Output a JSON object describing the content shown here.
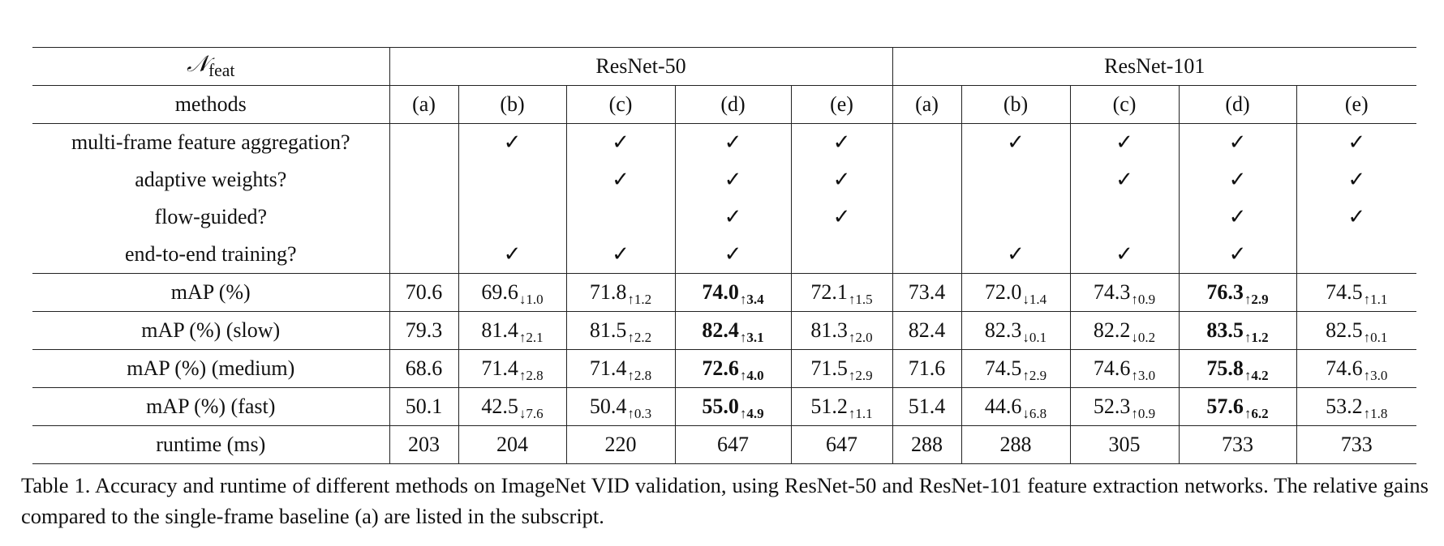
{
  "table": {
    "corner_label": {
      "symbol": "𝒩",
      "subscript": "feat"
    },
    "groups": [
      "ResNet-50",
      "ResNet-101"
    ],
    "methods_label": "methods",
    "method_ids": [
      "(a)",
      "(b)",
      "(c)",
      "(d)",
      "(e)",
      "(a)",
      "(b)",
      "(c)",
      "(d)",
      "(e)"
    ],
    "check_glyph": "✓",
    "check_rows": [
      {
        "label": "multi-frame feature aggregation?",
        "checks": [
          false,
          true,
          true,
          true,
          true,
          false,
          true,
          true,
          true,
          true
        ]
      },
      {
        "label": "adaptive weights?",
        "checks": [
          false,
          false,
          true,
          true,
          true,
          false,
          false,
          true,
          true,
          true
        ]
      },
      {
        "label": "flow-guided?",
        "checks": [
          false,
          false,
          false,
          true,
          true,
          false,
          false,
          false,
          true,
          true
        ]
      },
      {
        "label": "end-to-end training?",
        "checks": [
          false,
          true,
          true,
          true,
          false,
          false,
          true,
          true,
          true,
          false
        ]
      }
    ],
    "metric_rows": [
      {
        "label": "mAP (%)",
        "cells": [
          {
            "v": "70.6",
            "g": ""
          },
          {
            "v": "69.6",
            "g": "↓1.0"
          },
          {
            "v": "71.8",
            "g": "↑1.2"
          },
          {
            "v": "74.0",
            "g": "↑3.4",
            "bold": true
          },
          {
            "v": "72.1",
            "g": "↑1.5"
          },
          {
            "v": "73.4",
            "g": ""
          },
          {
            "v": "72.0",
            "g": "↓1.4"
          },
          {
            "v": "74.3",
            "g": "↑0.9"
          },
          {
            "v": "76.3",
            "g": "↑2.9",
            "bold": true
          },
          {
            "v": "74.5",
            "g": "↑1.1"
          }
        ]
      },
      {
        "label": "mAP (%) (slow)",
        "cells": [
          {
            "v": "79.3",
            "g": ""
          },
          {
            "v": "81.4",
            "g": "↑2.1"
          },
          {
            "v": "81.5",
            "g": "↑2.2"
          },
          {
            "v": "82.4",
            "g": "↑3.1",
            "bold": true
          },
          {
            "v": "81.3",
            "g": "↑2.0"
          },
          {
            "v": "82.4",
            "g": ""
          },
          {
            "v": "82.3",
            "g": "↓0.1"
          },
          {
            "v": "82.2",
            "g": "↓0.2"
          },
          {
            "v": "83.5",
            "g": "↑1.2",
            "bold": true
          },
          {
            "v": "82.5",
            "g": "↑0.1"
          }
        ]
      },
      {
        "label": "mAP (%) (medium)",
        "cells": [
          {
            "v": "68.6",
            "g": ""
          },
          {
            "v": "71.4",
            "g": "↑2.8"
          },
          {
            "v": "71.4",
            "g": "↑2.8"
          },
          {
            "v": "72.6",
            "g": "↑4.0",
            "bold": true
          },
          {
            "v": "71.5",
            "g": "↑2.9"
          },
          {
            "v": "71.6",
            "g": ""
          },
          {
            "v": "74.5",
            "g": "↑2.9"
          },
          {
            "v": "74.6",
            "g": "↑3.0"
          },
          {
            "v": "75.8",
            "g": "↑4.2",
            "bold": true
          },
          {
            "v": "74.6",
            "g": "↑3.0"
          }
        ]
      },
      {
        "label": "mAP (%) (fast)",
        "cells": [
          {
            "v": "50.1",
            "g": ""
          },
          {
            "v": "42.5",
            "g": "↓7.6"
          },
          {
            "v": "50.4",
            "g": "↑0.3"
          },
          {
            "v": "55.0",
            "g": "↑4.9",
            "bold": true
          },
          {
            "v": "51.2",
            "g": "↑1.1"
          },
          {
            "v": "51.4",
            "g": ""
          },
          {
            "v": "44.6",
            "g": "↓6.8"
          },
          {
            "v": "52.3",
            "g": "↑0.9"
          },
          {
            "v": "57.6",
            "g": "↑6.2",
            "bold": true
          },
          {
            "v": "53.2",
            "g": "↑1.8"
          }
        ]
      },
      {
        "label": "runtime (ms)",
        "cells": [
          {
            "v": "203",
            "g": ""
          },
          {
            "v": "204",
            "g": ""
          },
          {
            "v": "220",
            "g": ""
          },
          {
            "v": "647",
            "g": ""
          },
          {
            "v": "647",
            "g": ""
          },
          {
            "v": "288",
            "g": ""
          },
          {
            "v": "288",
            "g": ""
          },
          {
            "v": "305",
            "g": ""
          },
          {
            "v": "733",
            "g": ""
          },
          {
            "v": "733",
            "g": ""
          }
        ]
      }
    ]
  },
  "caption": "Table 1. Accuracy and runtime of different methods on ImageNet VID validation, using ResNet-50 and ResNet-101 feature extraction networks. The relative gains compared to the single-frame baseline (a) are listed in the subscript."
}
